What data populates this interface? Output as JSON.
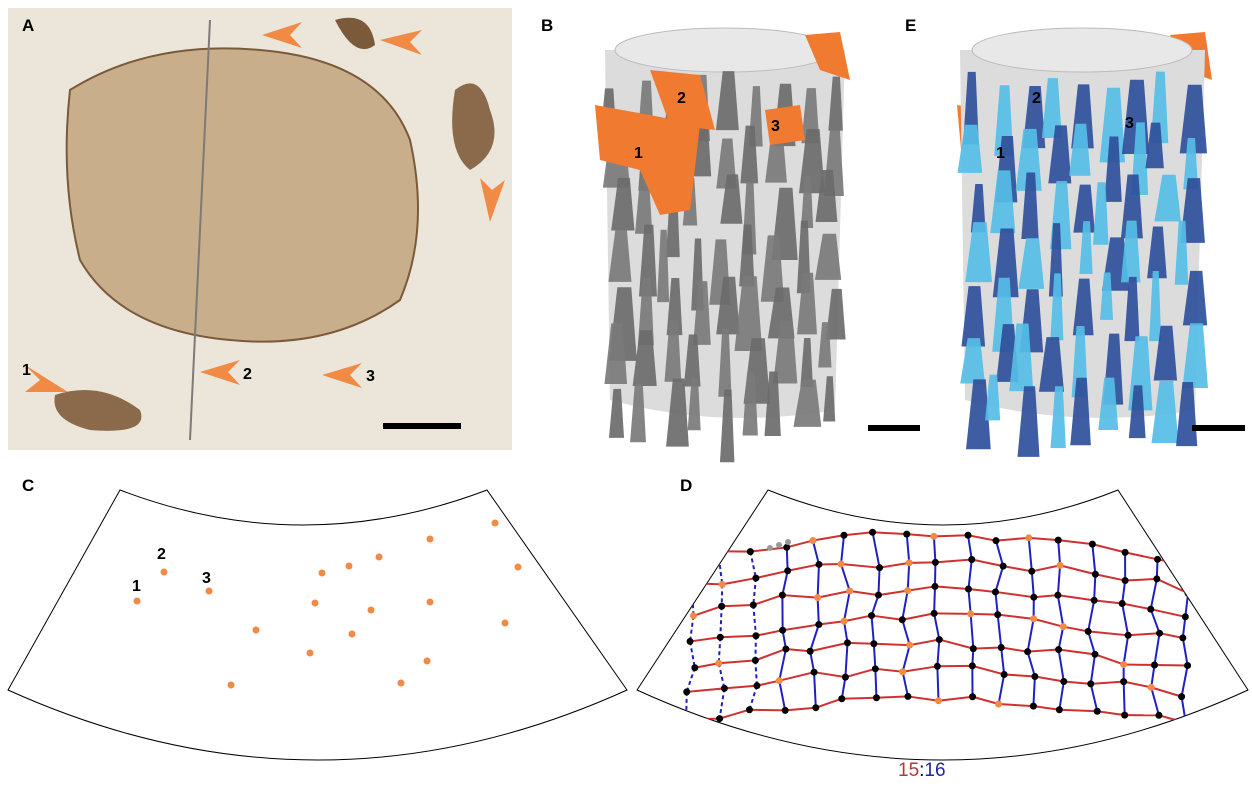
{
  "panels": {
    "A": {
      "letter": "A",
      "markers": [
        "1",
        "2",
        "3"
      ]
    },
    "B": {
      "letter": "B",
      "markers": [
        "1",
        "2",
        "3"
      ]
    },
    "C": {
      "letter": "C",
      "markers": [
        "1",
        "2",
        "3"
      ]
    },
    "D": {
      "letter": "D",
      "ratio": {
        "left": "15",
        "separator": ":",
        "right": "16"
      }
    },
    "E": {
      "letter": "E",
      "markers": [
        "1",
        "2",
        "3"
      ]
    }
  }
}
